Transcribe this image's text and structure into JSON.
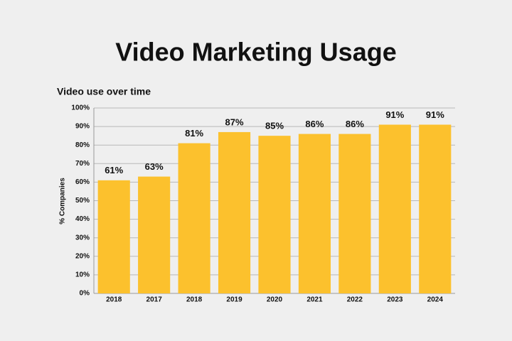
{
  "chart_data": {
    "type": "bar",
    "title": "Video Marketing Usage",
    "subtitle": "Video use over time",
    "y_label": "% Companies",
    "categories": [
      "2018",
      "2017",
      "2018",
      "2019",
      "2020",
      "2021",
      "2022",
      "2023",
      "2024"
    ],
    "values": [
      61,
      63,
      81,
      87,
      85,
      86,
      86,
      91,
      91
    ],
    "value_labels": [
      "61%",
      "63%",
      "81%",
      "87%",
      "85%",
      "86%",
      "86%",
      "91%",
      "91%"
    ],
    "color": "#fcc12d",
    "ylim": [
      0,
      100
    ],
    "yticks": [
      {
        "value": 0,
        "label": "0%"
      },
      {
        "value": 10,
        "label": "10%"
      },
      {
        "value": 20,
        "label": "20%"
      },
      {
        "value": 30,
        "label": "30%"
      },
      {
        "value": 40,
        "label": "40%"
      },
      {
        "value": 50,
        "label": "50%"
      },
      {
        "value": 60,
        "label": "60%"
      },
      {
        "value": 70,
        "label": "70%"
      },
      {
        "value": 80,
        "label": "80%"
      },
      {
        "value": 90,
        "label": "90%"
      },
      {
        "value": 100,
        "label": "100%"
      }
    ],
    "grid": true
  }
}
